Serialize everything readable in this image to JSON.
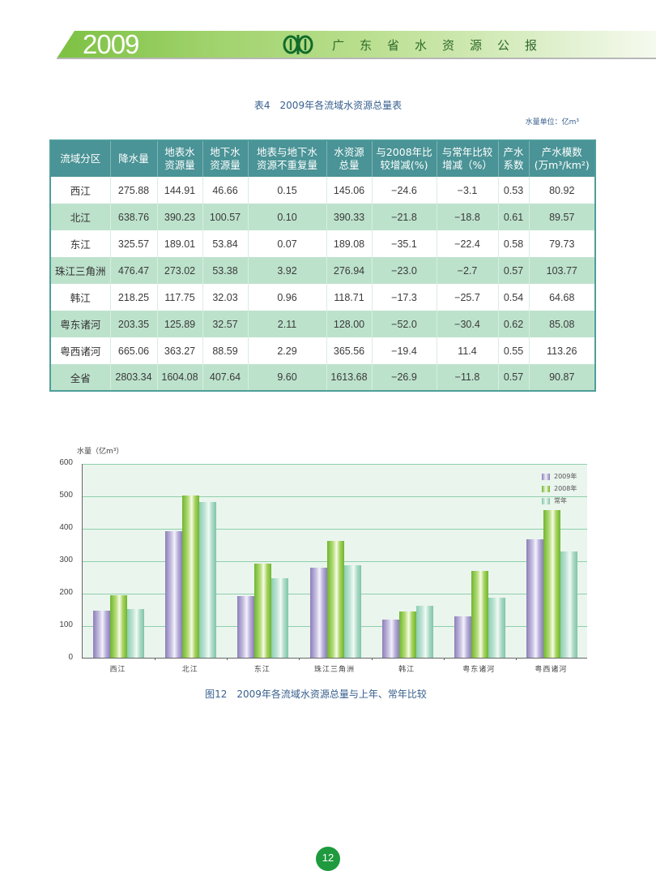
{
  "header": {
    "year": "2009",
    "title": "广东省水资源公报",
    "logo_icon": "water-resources-logo-icon"
  },
  "table": {
    "title": "表4　2009年各流域水资源总量表",
    "unit": "水量单位：亿m³",
    "columns": [
      [
        "流域分区"
      ],
      [
        "降水量"
      ],
      [
        "地表水",
        "资源量"
      ],
      [
        "地下水",
        "资源量"
      ],
      [
        "地表与地下水",
        "资源不重复量"
      ],
      [
        "水资源",
        "总量"
      ],
      [
        "与2008年比",
        "较增减(%)"
      ],
      [
        "与常年比较",
        "增减（%）"
      ],
      [
        "产水",
        "系数"
      ],
      [
        "产水模数",
        "(万m³/km²)"
      ]
    ],
    "rows": [
      [
        "西江",
        "275.88",
        "144.91",
        "46.66",
        "0.15",
        "145.06",
        "−24.6",
        "−3.1",
        "0.53",
        "80.92"
      ],
      [
        "北江",
        "638.76",
        "390.23",
        "100.57",
        "0.10",
        "390.33",
        "−21.8",
        "−18.8",
        "0.61",
        "89.57"
      ],
      [
        "东江",
        "325.57",
        "189.01",
        "53.84",
        "0.07",
        "189.08",
        "−35.1",
        "−22.4",
        "0.58",
        "79.73"
      ],
      [
        "珠江三角洲",
        "476.47",
        "273.02",
        "53.38",
        "3.92",
        "276.94",
        "−23.0",
        "−2.7",
        "0.57",
        "103.77"
      ],
      [
        "韩江",
        "218.25",
        "117.75",
        "32.03",
        "0.96",
        "118.71",
        "−17.3",
        "−25.7",
        "0.54",
        "64.68"
      ],
      [
        "粤东诸河",
        "203.35",
        "125.89",
        "32.57",
        "2.11",
        "128.00",
        "−52.0",
        "−30.4",
        "0.62",
        "85.08"
      ],
      [
        "粤西诸河",
        "665.06",
        "363.27",
        "88.59",
        "2.29",
        "365.56",
        "−19.4",
        "11.4",
        "0.55",
        "113.26"
      ],
      [
        "全省",
        "2803.34",
        "1604.08",
        "407.64",
        "9.60",
        "1613.68",
        "−26.9",
        "−11.8",
        "0.57",
        "90.87"
      ]
    ]
  },
  "chart_data": {
    "type": "bar",
    "title": "图12　2009年各流域水资源总量与上年、常年比较",
    "xlabel": "",
    "ylabel": "水量（亿m³）",
    "ylim": [
      0,
      600
    ],
    "yticks": [
      0,
      100,
      200,
      300,
      400,
      500,
      600
    ],
    "grid": true,
    "legend_position": "upper right",
    "categories": [
      "西江",
      "北江",
      "东江",
      "珠江三角洲",
      "韩江",
      "粤东诸河",
      "粤西诸河"
    ],
    "series": [
      {
        "name": "2009年",
        "color": "#9a8fc6",
        "values": [
          145.06,
          390.33,
          189.08,
          276.94,
          118.71,
          128.0,
          365.56
        ]
      },
      {
        "name": "2008年",
        "color": "#86c340",
        "values": [
          192,
          499,
          291,
          360,
          143,
          267,
          454
        ]
      },
      {
        "name": "常年",
        "color": "#93d0b6",
        "values": [
          150,
          481,
          244,
          285,
          160,
          184,
          328
        ]
      }
    ]
  },
  "page": {
    "number": "12"
  }
}
